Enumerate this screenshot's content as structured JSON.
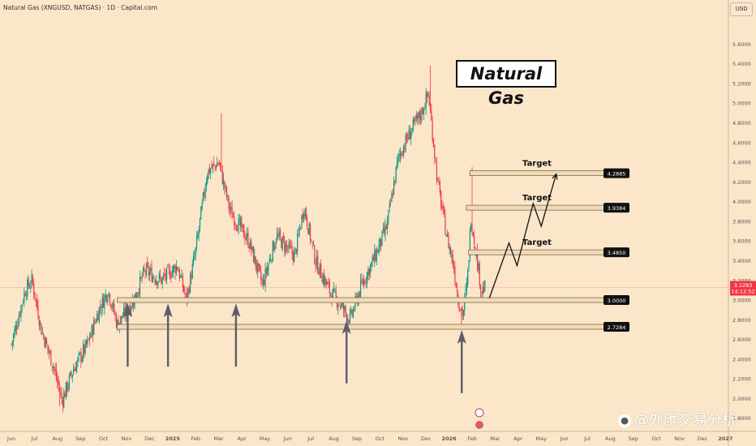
{
  "header": {
    "symbol_line": "Natural Gas (XNGUSD, NATGAS) · 1D · Capital.com",
    "currency": "USD"
  },
  "annotation_title": "Natural Gas",
  "watermark": "@外匯交易分析",
  "colors": {
    "background": "#fbe6c9",
    "up": "#089981",
    "down": "#f23645",
    "level_fill": "#f1dbb7",
    "arrow": "#5b5e66"
  },
  "chart_data": {
    "type": "candlestick",
    "title": "Natural Gas",
    "xlabel": "",
    "ylabel": "",
    "ylim": [
      1.6,
      5.8
    ],
    "y_ticks": [
      "5.6000",
      "5.4000",
      "5.2000",
      "5.0000",
      "4.8000",
      "4.6000",
      "4.4000",
      "4.2000",
      "4.0000",
      "3.8000",
      "3.6000",
      "3.4000",
      "3.2000",
      "3.0000",
      "2.8000",
      "2.6000",
      "2.4000",
      "2.2000",
      "2.0000",
      "1.8000"
    ],
    "x_ticks": [
      "Jun",
      "Jul",
      "Aug",
      "Sep",
      "Oct",
      "Nov",
      "Dec",
      "2025",
      "Feb",
      "Mar",
      "Apr",
      "May",
      "Jun",
      "Jul",
      "Aug",
      "Sep",
      "Oct",
      "Nov",
      "Dec",
      "2026",
      "Feb",
      "Mar",
      "Apr",
      "May",
      "Jun",
      "Jul",
      "Aug",
      "Sep",
      "Oct",
      "Nov",
      "Dec",
      "2027"
    ],
    "price_path": [
      {
        "month": 0,
        "price": 2.55
      },
      {
        "month": 0.6,
        "price": 3.1
      },
      {
        "month": 0.9,
        "price": 3.2
      },
      {
        "month": 1.3,
        "price": 2.7
      },
      {
        "month": 1.8,
        "price": 2.35
      },
      {
        "month": 2.2,
        "price": 1.98
      },
      {
        "month": 2.7,
        "price": 2.3
      },
      {
        "month": 3.3,
        "price": 2.55
      },
      {
        "month": 3.8,
        "price": 2.9
      },
      {
        "month": 4.2,
        "price": 3.1
      },
      {
        "month": 4.6,
        "price": 2.75
      },
      {
        "month": 5.3,
        "price": 3.0
      },
      {
        "month": 5.8,
        "price": 3.3
      },
      {
        "month": 6.5,
        "price": 3.2
      },
      {
        "month": 7.2,
        "price": 3.35
      },
      {
        "month": 7.6,
        "price": 3.0
      },
      {
        "month": 8.0,
        "price": 3.5
      },
      {
        "month": 8.5,
        "price": 4.3
      },
      {
        "month": 9.0,
        "price": 4.4
      },
      {
        "month": 9.5,
        "price": 3.9
      },
      {
        "month": 10.3,
        "price": 3.6
      },
      {
        "month": 10.9,
        "price": 3.15
      },
      {
        "month": 11.5,
        "price": 3.65
      },
      {
        "month": 12.3,
        "price": 3.45
      },
      {
        "month": 12.7,
        "price": 3.95
      },
      {
        "month": 13.2,
        "price": 3.4
      },
      {
        "month": 13.8,
        "price": 3.1
      },
      {
        "month": 14.3,
        "price": 2.95
      },
      {
        "month": 14.7,
        "price": 2.8
      },
      {
        "month": 15.2,
        "price": 3.15
      },
      {
        "month": 15.8,
        "price": 3.45
      },
      {
        "month": 16.3,
        "price": 3.75
      },
      {
        "month": 16.8,
        "price": 4.45
      },
      {
        "month": 17.3,
        "price": 4.7
      },
      {
        "month": 17.8,
        "price": 4.9
      },
      {
        "month": 18.1,
        "price": 5.1
      },
      {
        "month": 18.5,
        "price": 4.2
      },
      {
        "month": 18.9,
        "price": 3.65
      },
      {
        "month": 19.2,
        "price": 3.35
      },
      {
        "month": 19.4,
        "price": 3.0
      },
      {
        "month": 19.6,
        "price": 2.85
      },
      {
        "month": 19.8,
        "price": 3.2
      },
      {
        "month": 19.95,
        "price": 3.85
      },
      {
        "month": 20.1,
        "price": 3.6
      },
      {
        "month": 20.4,
        "price": 3.1
      },
      {
        "month": 20.6,
        "price": 3.13
      }
    ],
    "extremes": [
      {
        "month": 2.1,
        "price": 1.92
      },
      {
        "month": 9.1,
        "price": 4.9
      },
      {
        "month": 18.2,
        "price": 5.38
      },
      {
        "month": 19.55,
        "price": 2.73
      },
      {
        "month": 20.0,
        "price": 4.35
      }
    ],
    "last_price": "3.1283",
    "countdown": "14:12:52",
    "levels": [
      {
        "value": 3.0,
        "label": "3.0000",
        "start_month": 4.6,
        "target": ""
      },
      {
        "value": 2.7284,
        "label": "2.7284",
        "start_month": 4.6,
        "target": ""
      },
      {
        "value": 3.485,
        "label": "3.4850",
        "start_month": 19.85,
        "target": "Target"
      },
      {
        "value": 3.9384,
        "label": "3.9384",
        "start_month": 19.75,
        "target": "Target"
      },
      {
        "value": 4.2885,
        "label": "4.2885",
        "start_month": 19.9,
        "target": "Target"
      }
    ],
    "support_arrows": [
      {
        "month": 5.05,
        "price": 2.95
      },
      {
        "month": 6.8,
        "price": 2.95
      },
      {
        "month": 9.75,
        "price": 2.95
      },
      {
        "month": 14.55,
        "price": 2.78
      },
      {
        "month": 19.55,
        "price": 2.68
      }
    ],
    "projection": [
      {
        "month": 20.75,
        "price": 3.02
      },
      {
        "month": 21.6,
        "price": 3.58
      },
      {
        "month": 21.95,
        "price": 3.35
      },
      {
        "month": 22.65,
        "price": 3.98
      },
      {
        "month": 23.0,
        "price": 3.75
      },
      {
        "month": 23.65,
        "price": 4.28
      }
    ]
  }
}
